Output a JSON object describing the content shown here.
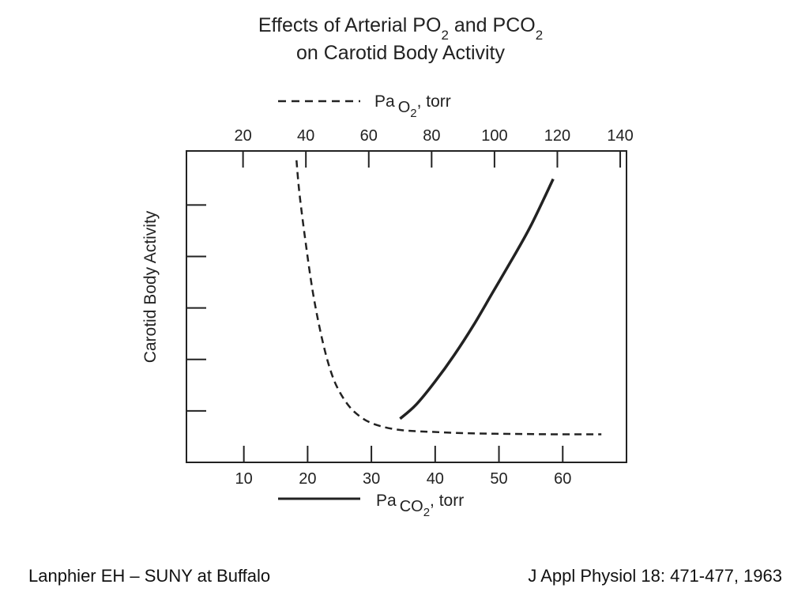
{
  "slide": {
    "footer_left": "Lanphier EH – SUNY at Buffalo",
    "footer_right": "J Appl Physiol 18: 471-477, 1963"
  },
  "chart_data": {
    "type": "line",
    "title_line1": {
      "parts": [
        {
          "text": "Effects of Arterial P"
        },
        {
          "text": "O",
          "sub": "2"
        },
        {
          "text": " and P"
        },
        {
          "text": "CO",
          "sub": "2"
        }
      ]
    },
    "title_line2": "on Carotid Body Activity",
    "ylabel": "Carotid Body Activity",
    "y_ticks": 5,
    "ylim": [
      0,
      1
    ],
    "top_axis": {
      "label": {
        "prefix": "Pa",
        "sub": "O",
        "subsub": "2",
        "suffix": ", torr"
      },
      "ticks": [
        20,
        40,
        60,
        80,
        100,
        120,
        140
      ],
      "lim": [
        2,
        142
      ]
    },
    "bottom_axis": {
      "label": {
        "prefix": "Pa",
        "sub": "CO",
        "subsub": "2",
        "suffix": ", torr"
      },
      "ticks": [
        10,
        20,
        30,
        40,
        50,
        60
      ],
      "lim": [
        1,
        70
      ]
    },
    "series": [
      {
        "key": "pao2",
        "axis": "top",
        "style": "dashed",
        "color": "#222222",
        "x": [
          37,
          38,
          40,
          42,
          44,
          46,
          48,
          50,
          53,
          56,
          60,
          65,
          70,
          75,
          80,
          90,
          100,
          110,
          120,
          130,
          134
        ],
        "y": [
          0.97,
          0.86,
          0.7,
          0.56,
          0.45,
          0.36,
          0.29,
          0.24,
          0.19,
          0.157,
          0.13,
          0.113,
          0.104,
          0.1,
          0.098,
          0.094,
          0.092,
          0.091,
          0.09,
          0.09,
          0.09
        ]
      },
      {
        "key": "paco2",
        "axis": "bottom",
        "style": "solid",
        "color": "#222222",
        "x": [
          34.5,
          37,
          40,
          43,
          46,
          49,
          52,
          55,
          58.5
        ],
        "y": [
          0.14,
          0.185,
          0.26,
          0.345,
          0.44,
          0.545,
          0.65,
          0.76,
          0.91
        ]
      }
    ]
  }
}
